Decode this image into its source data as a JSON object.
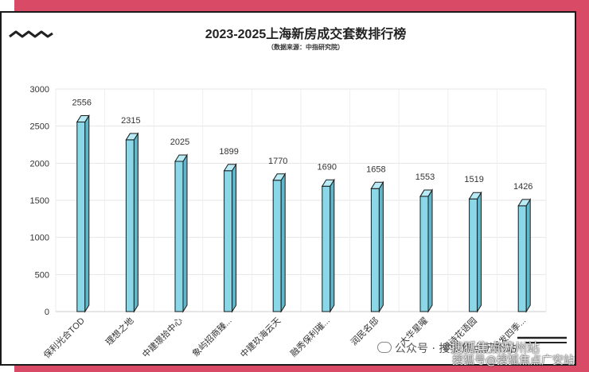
{
  "chart_data": {
    "type": "bar",
    "title": "2023-2025上海新房成交套数排行榜",
    "subtitle": "（数据来源：中指研究院）",
    "categories": [
      "保利光合TOD",
      "理想之地",
      "中建璟拾中心",
      "象屿招商臻...",
      "中建玖海云天",
      "融秀保利璀...",
      "润民名邸",
      "大华星曜",
      "朗诗花语园",
      "华发四季..."
    ],
    "values": [
      2556,
      2315,
      2025,
      1899,
      1770,
      1690,
      1658,
      1553,
      1519,
      1426
    ],
    "ylim": [
      0,
      3000
    ],
    "yticks": [
      0,
      500,
      1000,
      1500,
      2000,
      2500,
      3000
    ],
    "grid": true,
    "bar_color": "#8ad7e8",
    "bar_top_color": "#b8ebf5",
    "bar_side_color": "#5cb8cc",
    "accent_color": "#d94a66"
  },
  "watermarks": {
    "wechat": "公众号 · 搜狐焦点苏州站",
    "sohu_line1": "搜狐焦点苏州站",
    "sohu_line2": "搜狐号@搜狐焦点广安站"
  }
}
